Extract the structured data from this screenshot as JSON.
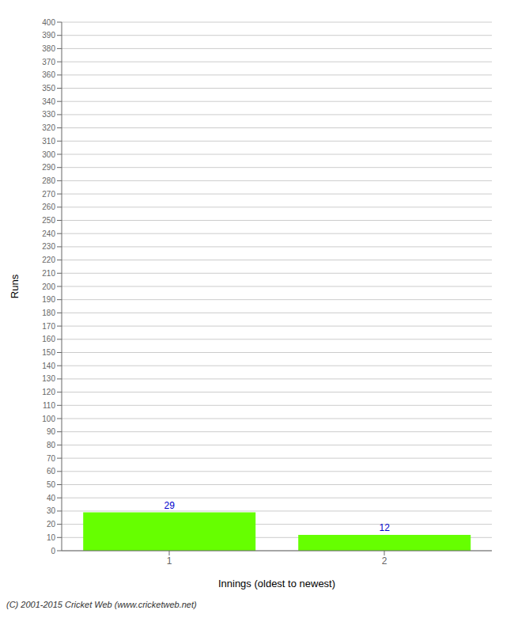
{
  "chart_data": {
    "type": "bar",
    "categories": [
      "1",
      "2"
    ],
    "values": [
      29,
      12
    ],
    "color": "#66ff00",
    "xlabel": "Innings (oldest to newest)",
    "ylabel": "Runs",
    "ylim": [
      0,
      400
    ],
    "yticks": [
      0,
      10,
      20,
      30,
      40,
      50,
      60,
      70,
      80,
      90,
      100,
      110,
      120,
      130,
      140,
      150,
      160,
      170,
      180,
      190,
      200,
      210,
      220,
      230,
      240,
      250,
      260,
      270,
      280,
      290,
      300,
      310,
      320,
      330,
      340,
      350,
      360,
      370,
      380,
      390,
      400
    ],
    "grid": true,
    "data_labels": true,
    "annotations": [
      "(C) 2001-2015 Cricket Web (www.cricketweb.net)"
    ]
  }
}
